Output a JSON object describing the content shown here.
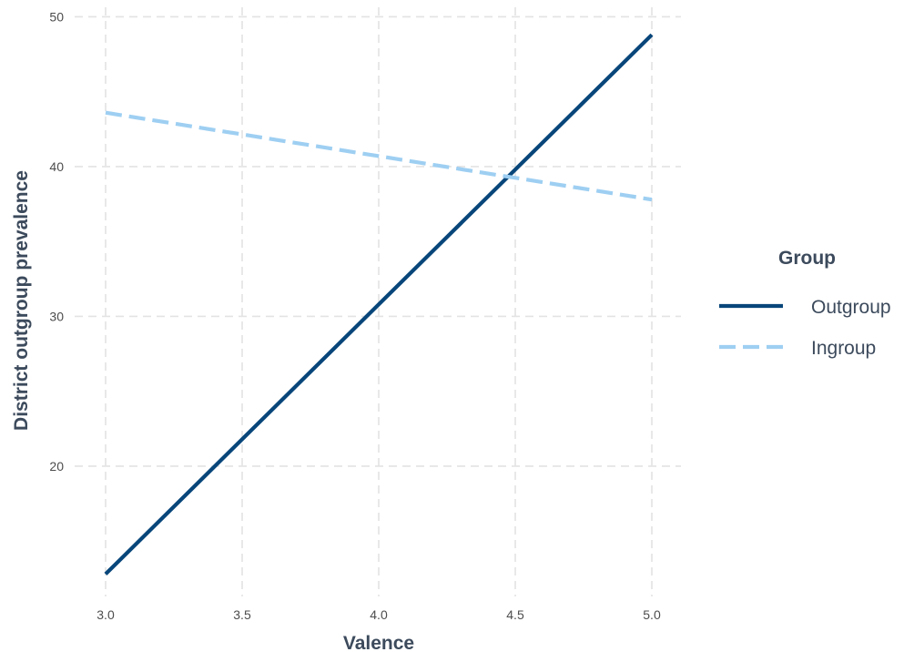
{
  "chart_data": {
    "type": "line",
    "title": "",
    "xlabel": "Valence",
    "ylabel": "District outgroup prevalence",
    "xlim": [
      3.0,
      5.0
    ],
    "ylim": [
      11.0,
      51.0
    ],
    "x_ticks": [
      3.0,
      3.5,
      4.0,
      4.5,
      5.0
    ],
    "x_tick_labels": [
      "3.0",
      "3.5",
      "4.0",
      "4.5",
      "5.0"
    ],
    "y_ticks": [
      20,
      30,
      40,
      50
    ],
    "y_tick_labels": [
      "20",
      "30",
      "40",
      "50"
    ],
    "grid": true,
    "legend": {
      "title": "Group",
      "placement": "right"
    },
    "series": [
      {
        "name": "Outgroup",
        "color": "#08467a",
        "linestyle": "solid",
        "x": [
          3.0,
          5.0
        ],
        "y": [
          12.8,
          48.8
        ]
      },
      {
        "name": "Ingroup",
        "color": "#9ecff2",
        "linestyle": "dashed",
        "x": [
          3.0,
          5.0
        ],
        "y": [
          43.6,
          37.8
        ]
      }
    ]
  }
}
